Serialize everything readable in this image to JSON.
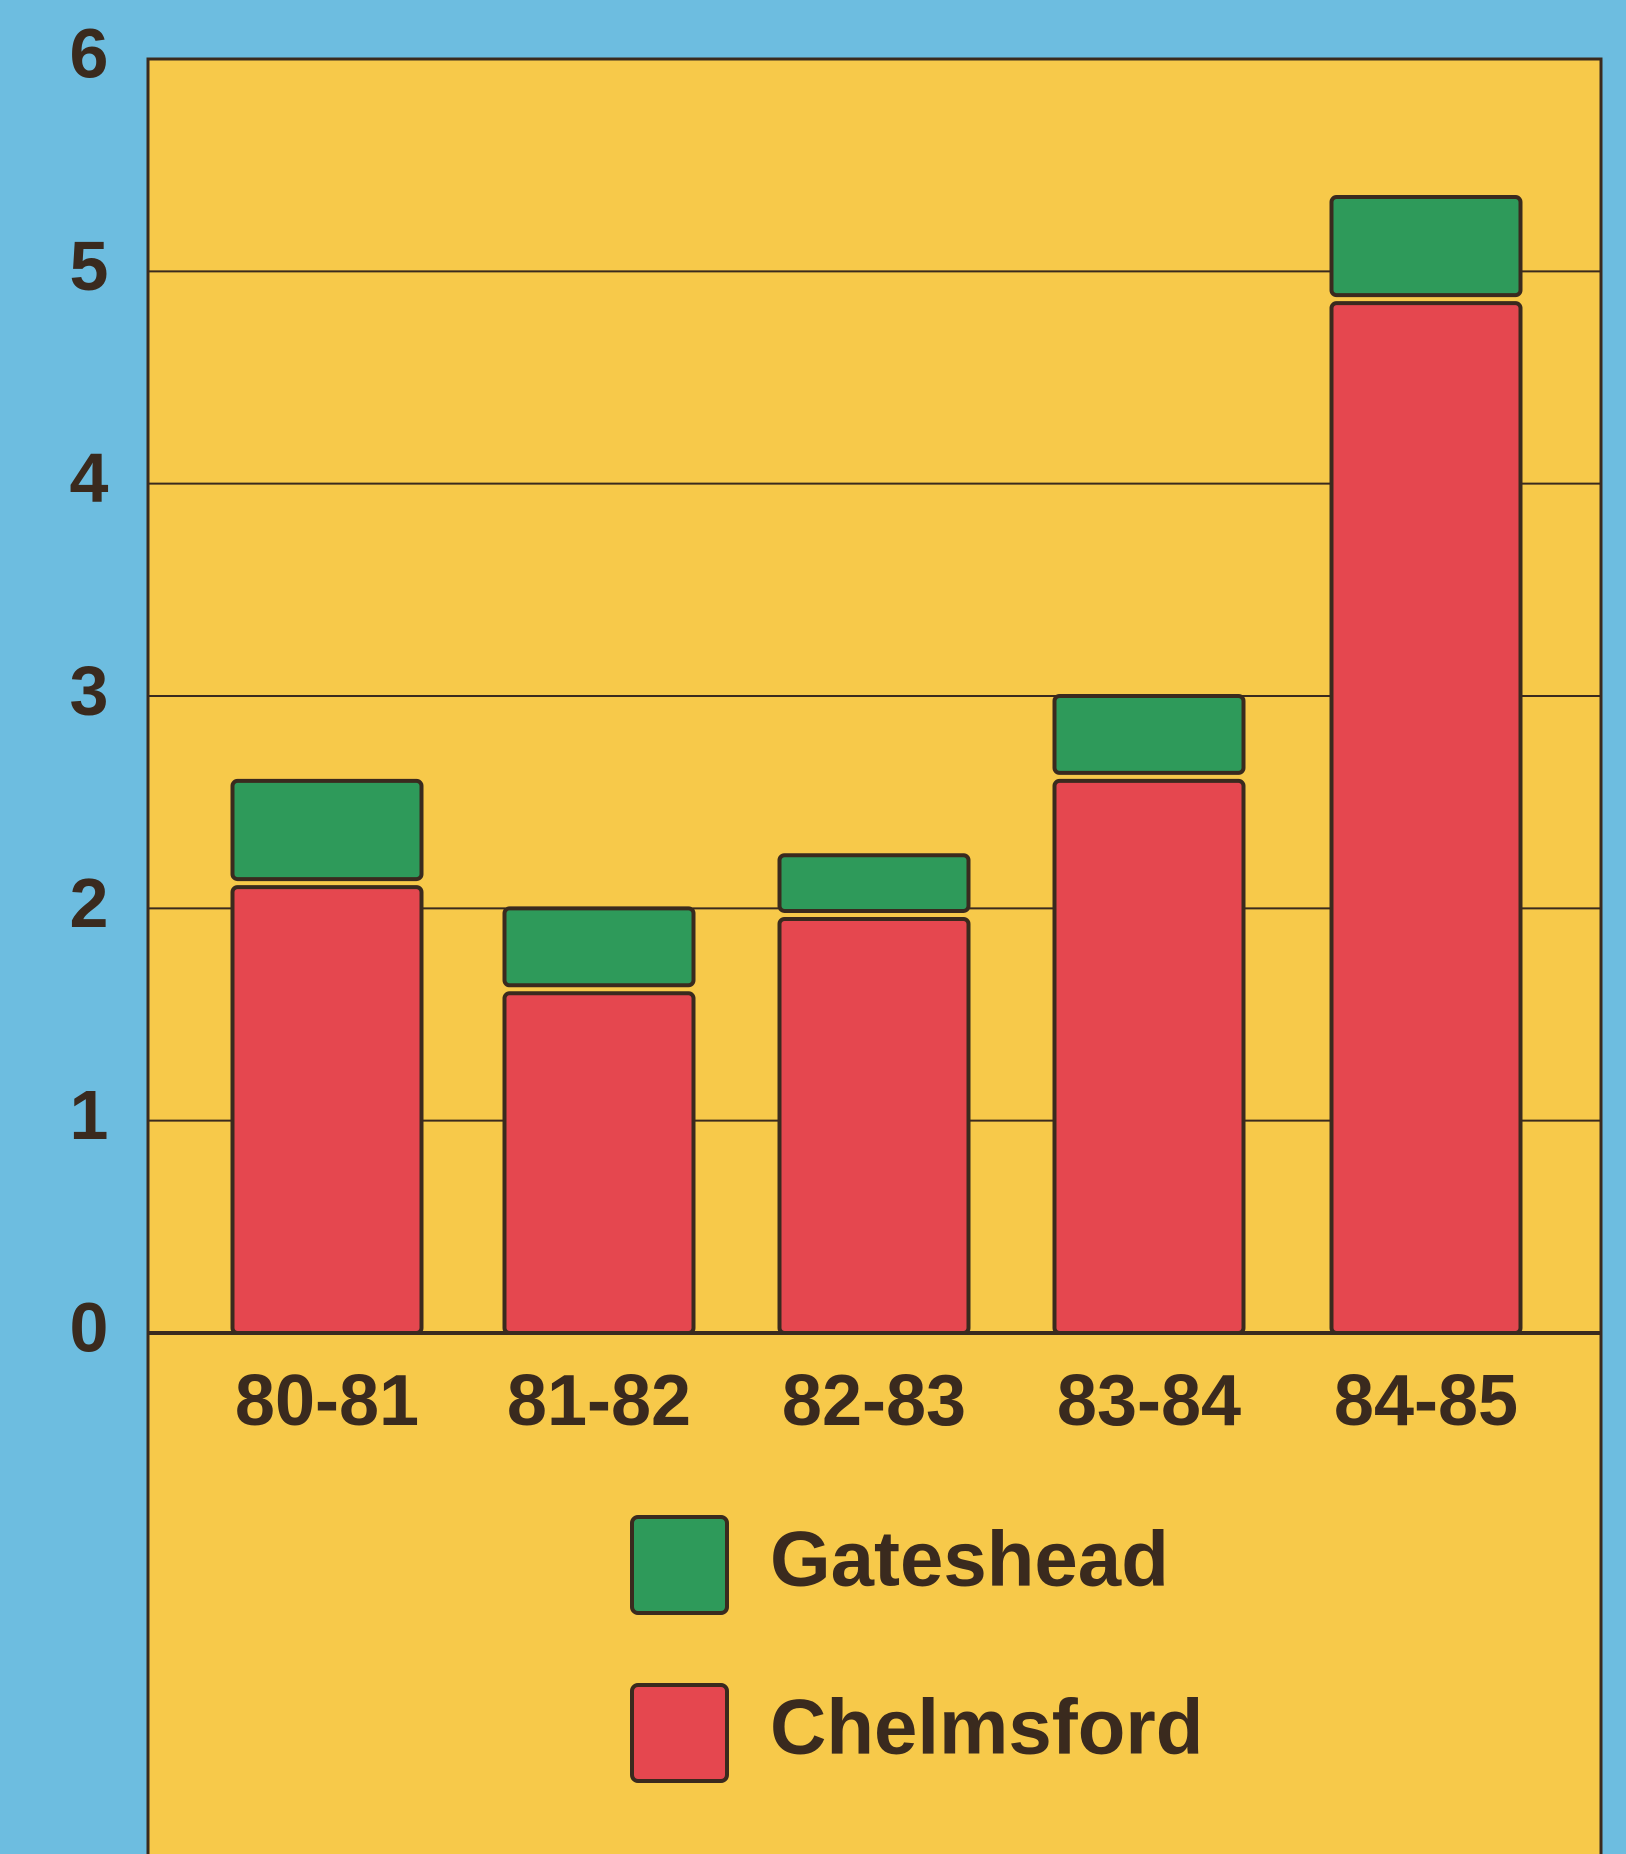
{
  "chart_data": {
    "type": "stacked_bar",
    "categories": [
      "80-81",
      "81-82",
      "82-83",
      "83-84",
      "84-85"
    ],
    "series": [
      {
        "name": "Chelmsford",
        "color": "#e5474f",
        "values": [
          2.1,
          1.6,
          1.95,
          2.6,
          4.85
        ]
      },
      {
        "name": "Gateshead",
        "color": "#2e9a5a",
        "values": [
          0.5,
          0.4,
          0.3,
          0.4,
          0.5
        ]
      }
    ],
    "ylim": [
      0,
      6
    ],
    "yticks": [
      0,
      1,
      2,
      3,
      4,
      5,
      6
    ],
    "grid": true
  }
}
